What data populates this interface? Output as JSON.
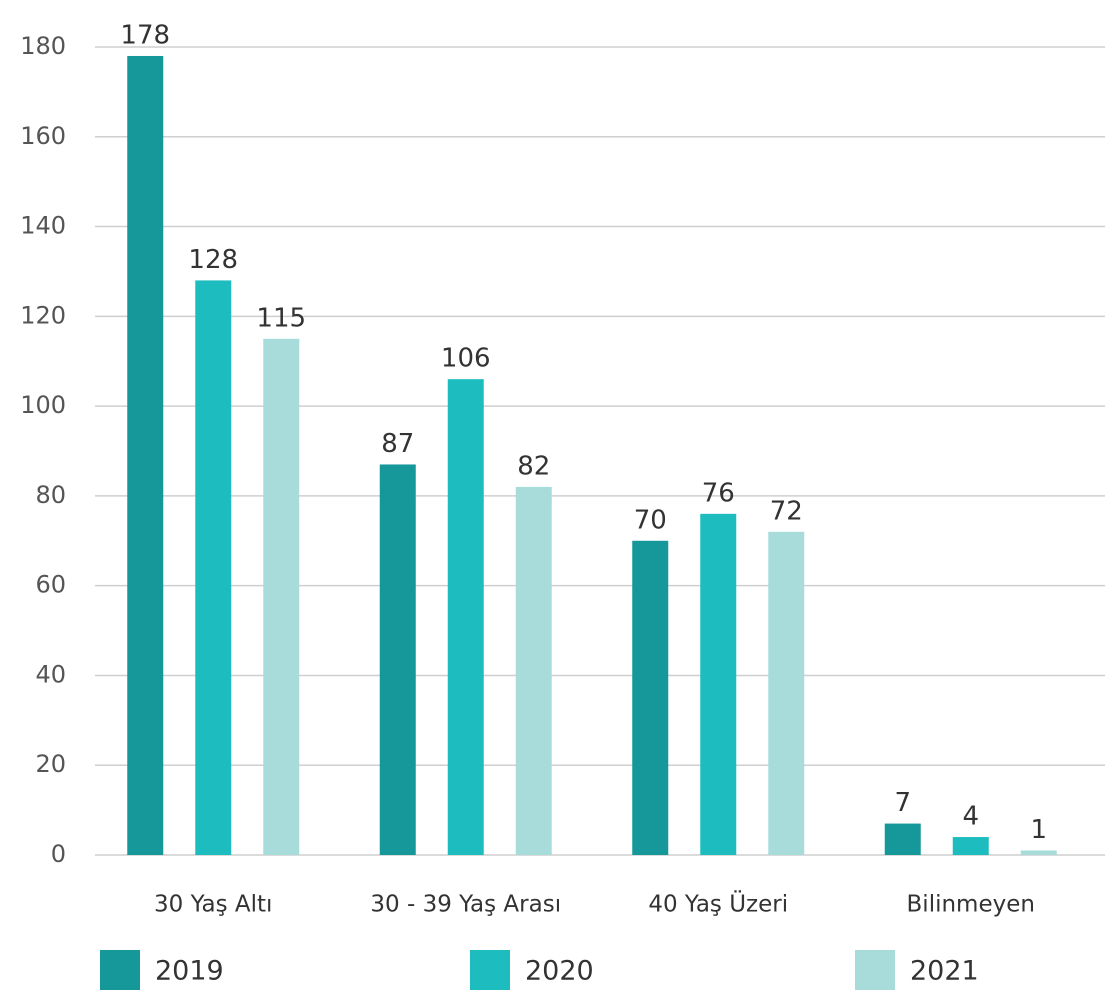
{
  "chart_data": {
    "type": "bar",
    "categories": [
      "30 Yaş Altı",
      "30 - 39 Yaş Arası",
      "40 Yaş Üzeri",
      "Bilinmeyen"
    ],
    "series": [
      {
        "name": "2019",
        "color": "#16979a",
        "values": [
          178,
          87,
          70,
          7
        ]
      },
      {
        "name": "2020",
        "color": "#1dbdbf",
        "values": [
          128,
          106,
          76,
          4
        ]
      },
      {
        "name": "2021",
        "color": "#a8dcdb",
        "values": [
          115,
          82,
          72,
          1
        ]
      }
    ],
    "ylim": [
      0,
      180
    ],
    "yticks": [
      0,
      20,
      40,
      60,
      80,
      100,
      120,
      140,
      160,
      180
    ],
    "grid": true,
    "legend": "bottom"
  }
}
